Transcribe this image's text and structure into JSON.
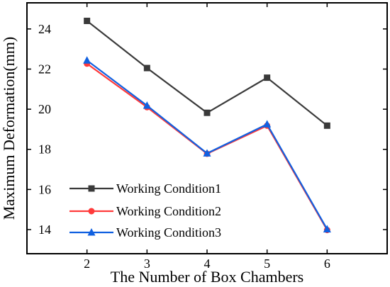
{
  "chart_data": {
    "type": "line",
    "xlabel": "The Number of Box Chambers",
    "ylabel": "Maximum Deformation(mm)",
    "x": [
      2,
      3,
      4,
      5,
      6
    ],
    "xlim": [
      1,
      7
    ],
    "ylim": [
      12.8,
      25.3
    ],
    "xticks": [
      2,
      3,
      4,
      5,
      6
    ],
    "yticks": [
      14,
      16,
      18,
      20,
      22,
      24
    ],
    "grid": false,
    "legend_position": "lower-left",
    "series": [
      {
        "name": "Working Condition1",
        "values": [
          24.4,
          22.05,
          19.82,
          21.57,
          19.18
        ],
        "color": "#3a3a3a",
        "marker": "square"
      },
      {
        "name": "Working Condition2",
        "values": [
          22.27,
          20.1,
          17.78,
          19.18,
          13.98
        ],
        "color": "#ff3a3a",
        "marker": "circle"
      },
      {
        "name": "Working Condition3",
        "values": [
          22.43,
          20.18,
          17.8,
          19.25,
          14.02
        ],
        "color": "#1060e0",
        "marker": "triangle"
      }
    ]
  }
}
